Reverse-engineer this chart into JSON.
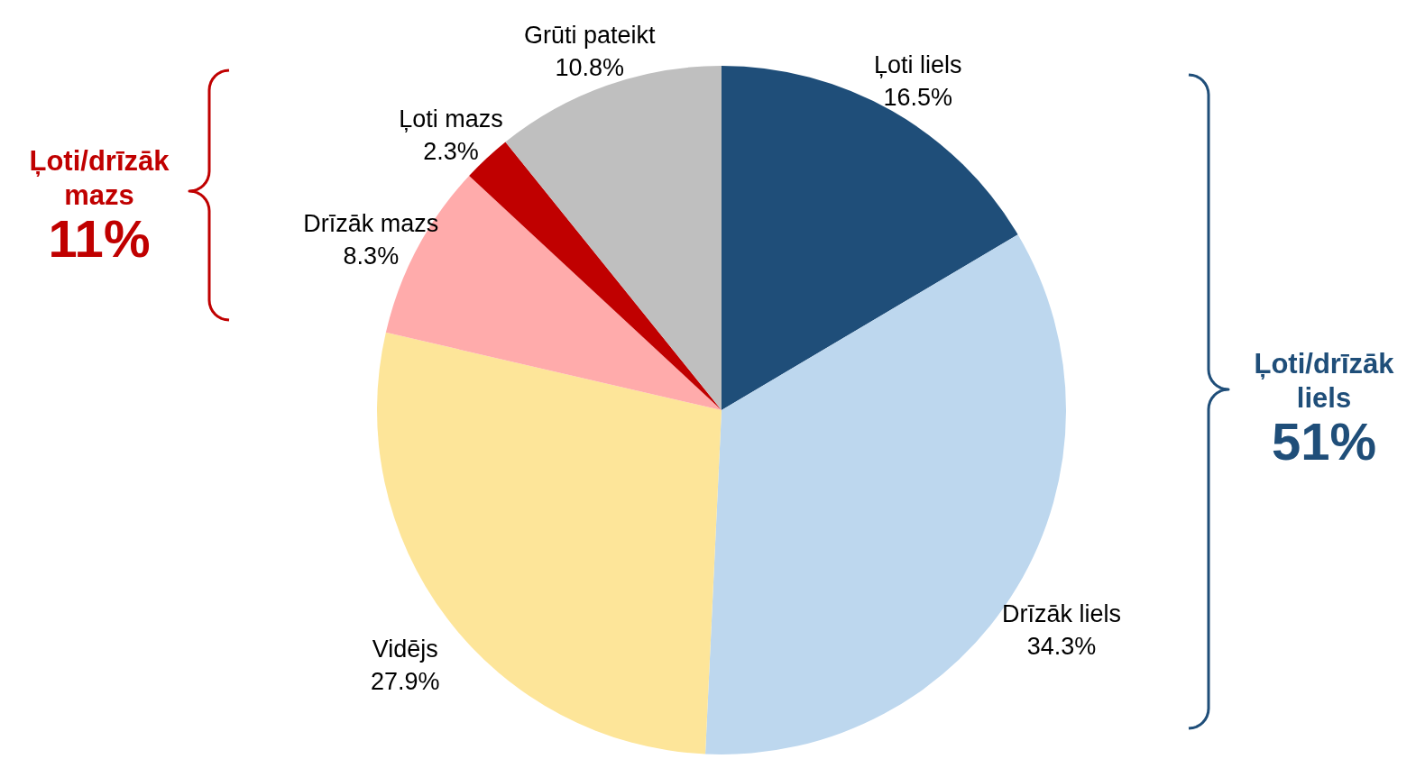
{
  "chart_data": {
    "type": "pie",
    "categories": [
      "Ļoti liels",
      "Drīzāk liels",
      "Vidējs",
      "Drīzāk mazs",
      "Ļoti mazs",
      "Grūti pateikt"
    ],
    "values": [
      16.5,
      34.3,
      27.9,
      8.3,
      2.3,
      10.8
    ],
    "colors": [
      "#1f4e79",
      "#bdd7ee",
      "#fde599",
      "#ffabab",
      "#c00000",
      "#bfbfbf"
    ],
    "value_labels": [
      "16.5%",
      "34.3%",
      "27.9%",
      "8.3%",
      "2.3%",
      "10.8%"
    ],
    "annotations": [
      "Ļoti/drīzāk mazs",
      "11%",
      "Ļoti/drīzāk liels",
      "51%"
    ]
  }
}
